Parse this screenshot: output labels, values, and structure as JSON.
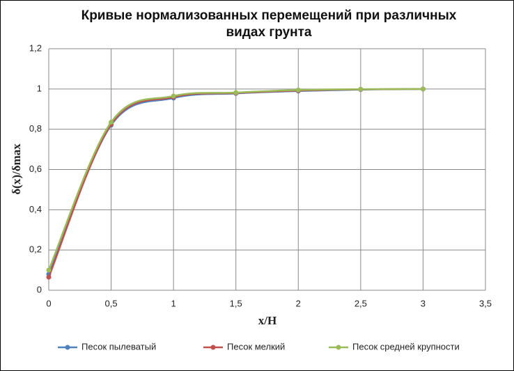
{
  "chart_data": {
    "type": "line",
    "title": "Кривые  нормализованных  перемещений при различных видах грунта",
    "x_label": "x/H",
    "y_label": "δ(x)/δmax",
    "x": [
      0,
      0.5,
      1,
      1.5,
      2,
      2.5,
      3
    ],
    "series": [
      {
        "name": "Песок пылеватый",
        "color": "#4f81bd",
        "values": [
          0.08,
          0.82,
          0.955,
          0.978,
          0.99,
          0.997,
          1.0
        ]
      },
      {
        "name": "Песок мелкий",
        "color": "#c0504d",
        "values": [
          0.065,
          0.825,
          0.96,
          0.98,
          0.992,
          0.998,
          1.0
        ]
      },
      {
        "name": "Песок средней крупности",
        "color": "#9bbb59",
        "values": [
          0.1,
          0.835,
          0.965,
          0.982,
          0.995,
          0.999,
          1.0
        ]
      }
    ],
    "xlim": [
      0,
      3.5
    ],
    "xticks": [
      0,
      {
        "value": 0.5,
        "label": "0,5"
      },
      1,
      {
        "value": 1.5,
        "label": "1,5"
      },
      2,
      {
        "value": 2.5,
        "label": "2,5"
      },
      3,
      {
        "value": 3.5,
        "label": "3,5"
      }
    ],
    "ylim": [
      0,
      1.2
    ],
    "yticks": [
      0,
      {
        "value": 0.2,
        "label": "0,2"
      },
      {
        "value": 0.4,
        "label": "0,4"
      },
      {
        "value": 0.6,
        "label": "0,6"
      },
      {
        "value": 0.8,
        "label": "0,8"
      },
      1,
      {
        "value": 1.2,
        "label": "1,2"
      }
    ],
    "grid": true,
    "smooth": true,
    "legend": "bottom"
  }
}
